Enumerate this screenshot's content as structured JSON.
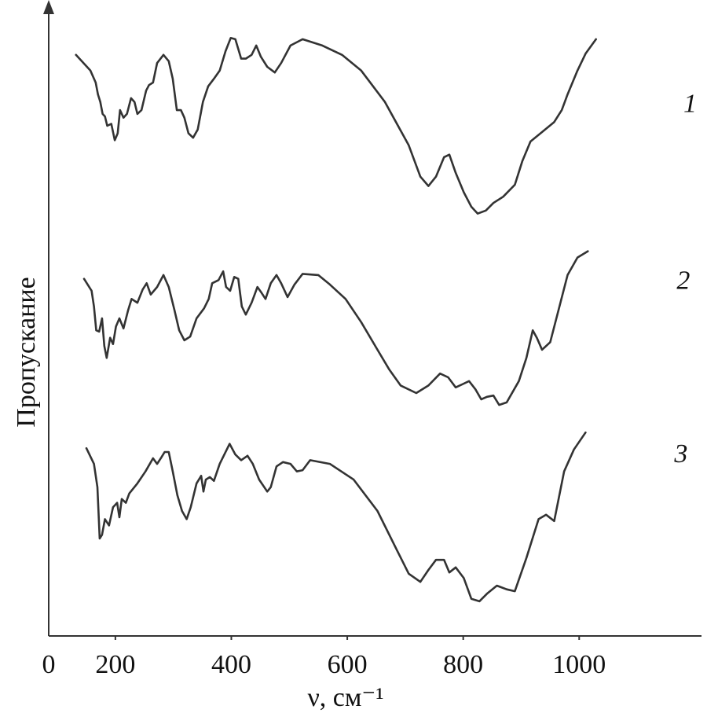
{
  "chart_data": {
    "type": "line",
    "y_label": "Пропускание",
    "x_label": "ν, см⁻¹",
    "origin_label": "0",
    "xlim": [
      85,
      1211
    ],
    "ylim": [
      0,
      100
    ],
    "xticks": [
      200,
      400,
      600,
      800,
      1000
    ],
    "color": "#333333",
    "series": [
      {
        "name": "1",
        "x": [
          132,
          157,
          166,
          170,
          174,
          178,
          182,
          186,
          193,
          199,
          204,
          208,
          214,
          220,
          227,
          233,
          238,
          245,
          253,
          258,
          265,
          272,
          283,
          292,
          299,
          306,
          313,
          319,
          326,
          334,
          342,
          351,
          360,
          370,
          380,
          390,
          399,
          407,
          417,
          425,
          435,
          443,
          451,
          462,
          475,
          486,
          502,
          523,
          557,
          591,
          624,
          665,
          706,
          726,
          740,
          753,
          767,
          776,
          787,
          801,
          814,
          825,
          839,
          852,
          869,
          889,
          902,
          916,
          936,
          957,
          970,
          980,
          997,
          1011,
          1029
        ],
        "values": [
          92.5,
          90.0,
          88.1,
          86.2,
          85.0,
          83.1,
          82.7,
          81.2,
          81.5,
          78.9,
          80.0,
          83.7,
          82.5,
          83.1,
          85.6,
          85.0,
          83.1,
          83.7,
          86.8,
          87.7,
          88.1,
          91.2,
          92.5,
          91.5,
          88.7,
          83.7,
          83.7,
          82.5,
          80.0,
          79.3,
          80.6,
          85.0,
          87.5,
          88.7,
          90.0,
          93.1,
          95.2,
          95.0,
          91.9,
          91.9,
          92.5,
          94.0,
          92.2,
          90.6,
          89.7,
          91.2,
          94.0,
          95.0,
          94.0,
          92.5,
          90.0,
          85.0,
          78.1,
          73.1,
          71.6,
          73.1,
          76.2,
          76.6,
          73.7,
          70.6,
          68.3,
          67.2,
          67.7,
          68.9,
          69.9,
          71.8,
          75.6,
          78.7,
          80.2,
          81.8,
          83.7,
          86.2,
          90.0,
          92.7,
          95.0
        ]
      },
      {
        "name": "2",
        "x": [
          146,
          159,
          163,
          167,
          172,
          177,
          181,
          185,
          191,
          196,
          201,
          207,
          214,
          222,
          228,
          238,
          247,
          254,
          261,
          272,
          283,
          292,
          302,
          310,
          319,
          329,
          340,
          353,
          361,
          367,
          378,
          386,
          391,
          398,
          405,
          412,
          418,
          425,
          435,
          445,
          452,
          459,
          468,
          478,
          486,
          497,
          509,
          523,
          550,
          570,
          597,
          624,
          652,
          672,
          692,
          719,
          740,
          760,
          774,
          787,
          801,
          810,
          821,
          831,
          841,
          852,
          862,
          875,
          896,
          909,
          920,
          927,
          936,
          950,
          966,
          980,
          997,
          1015
        ],
        "values": [
          56.8,
          54.9,
          52.4,
          48.6,
          48.4,
          50.5,
          46.1,
          44.2,
          47.4,
          46.4,
          49.2,
          50.5,
          48.9,
          51.8,
          53.6,
          53.0,
          55.1,
          56.1,
          54.3,
          55.5,
          57.4,
          55.5,
          51.8,
          48.6,
          47.0,
          47.6,
          50.5,
          52.1,
          53.6,
          56.1,
          56.6,
          58.0,
          55.5,
          54.9,
          57.1,
          56.8,
          52.4,
          51.1,
          53.0,
          55.5,
          54.6,
          53.6,
          56.1,
          57.4,
          56.1,
          53.9,
          55.9,
          57.6,
          57.4,
          55.9,
          53.6,
          49.9,
          45.5,
          42.4,
          39.8,
          38.6,
          39.8,
          41.7,
          41.1,
          39.5,
          40.1,
          40.5,
          39.2,
          37.6,
          38.0,
          38.2,
          36.7,
          37.1,
          40.5,
          44.2,
          48.6,
          47.4,
          45.5,
          46.7,
          52.4,
          57.4,
          60.2,
          61.2
        ]
      },
      {
        "name": "3",
        "x": [
          150,
          163,
          169,
          173,
          177,
          182,
          189,
          196,
          203,
          207,
          211,
          218,
          224,
          238,
          252,
          265,
          272,
          279,
          285,
          292,
          299,
          307,
          315,
          323,
          330,
          340,
          348,
          352,
          356,
          363,
          370,
          380,
          397,
          407,
          417,
          428,
          437,
          448,
          462,
          468,
          478,
          489,
          502,
          513,
          523,
          536,
          570,
          611,
          652,
          686,
          706,
          726,
          740,
          753,
          767,
          776,
          787,
          801,
          814,
          828,
          841,
          858,
          875,
          889,
          909,
          930,
          943,
          957,
          974,
          991,
          1011
        ],
        "values": [
          29.8,
          27.3,
          23.6,
          15.4,
          16.0,
          18.5,
          17.5,
          20.4,
          21.1,
          18.8,
          21.7,
          21.1,
          22.6,
          24.2,
          26.1,
          28.2,
          27.3,
          28.3,
          29.2,
          29.2,
          26.1,
          22.3,
          19.8,
          18.5,
          20.4,
          24.2,
          25.4,
          22.9,
          24.8,
          25.2,
          24.6,
          27.3,
          30.5,
          28.8,
          27.9,
          28.6,
          27.3,
          24.8,
          22.9,
          23.6,
          26.9,
          27.6,
          27.3,
          26.1,
          26.3,
          27.9,
          27.3,
          24.8,
          19.8,
          13.5,
          9.8,
          8.5,
          10.4,
          12.0,
          12.0,
          10.0,
          10.8,
          9.1,
          5.8,
          5.4,
          6.6,
          7.9,
          7.3,
          7.0,
          12.3,
          18.5,
          19.2,
          18.2,
          26.1,
          29.6,
          32.3
        ]
      }
    ]
  }
}
